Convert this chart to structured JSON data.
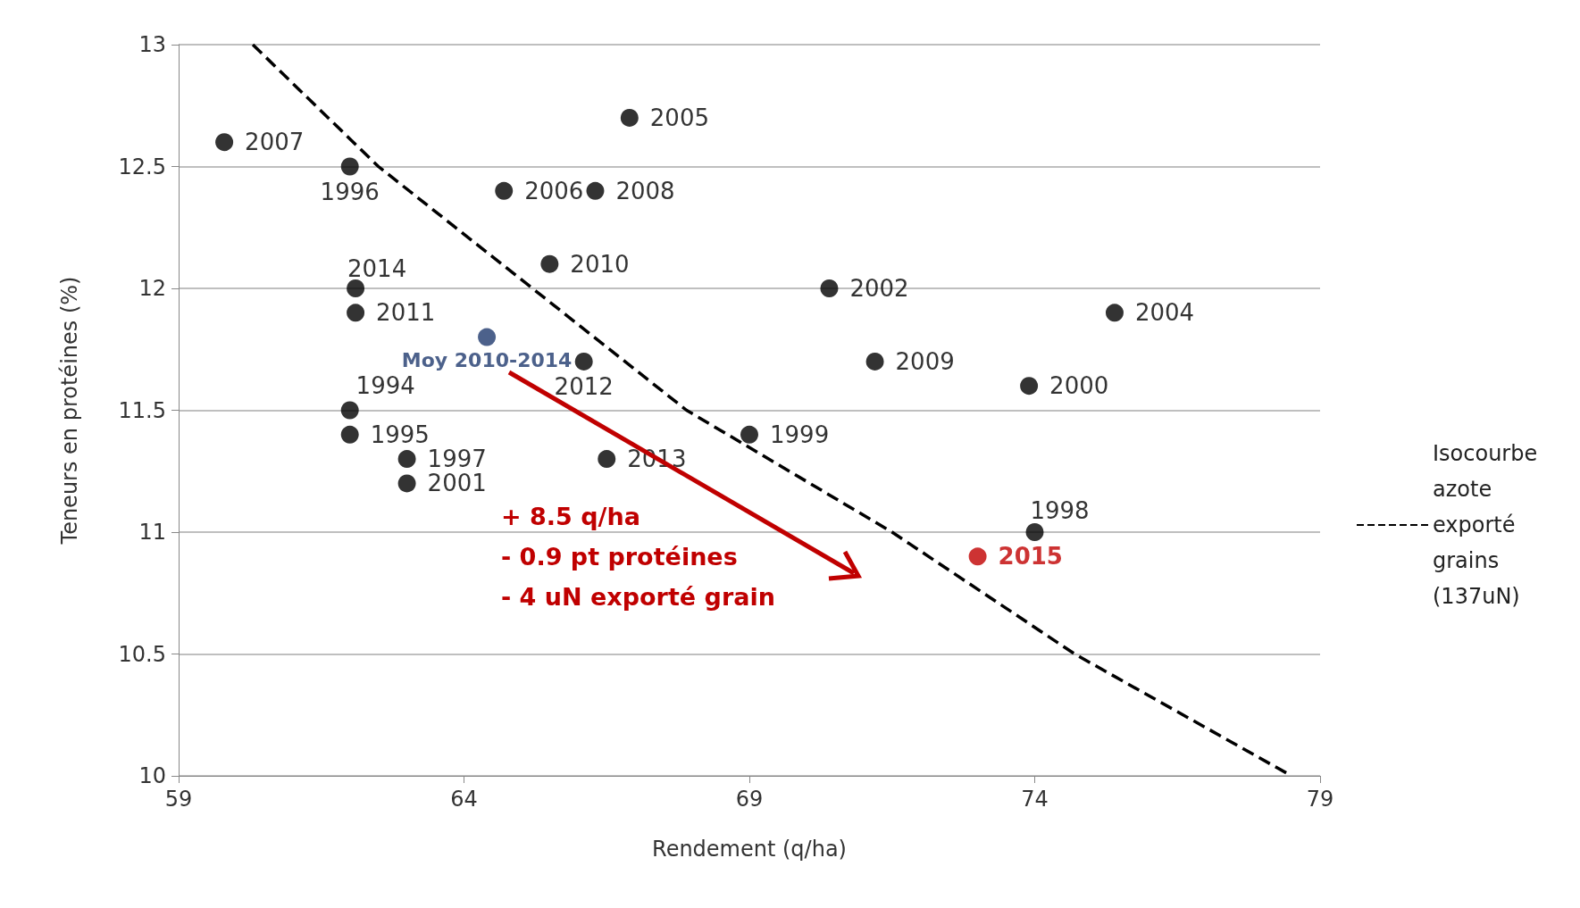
{
  "chart_data": {
    "type": "scatter",
    "xlabel": "Rendement (q/ha)",
    "ylabel": "Teneurs en protéines (%)",
    "xlim": [
      59,
      79
    ],
    "xticks": [
      59,
      64,
      69,
      74,
      79
    ],
    "ylim": [
      10,
      13
    ],
    "yticks": [
      10,
      10.5,
      11,
      11.5,
      12,
      12.5,
      13
    ],
    "grid": "y",
    "legend": "right",
    "marker": "circle",
    "annotations": [
      "+ 8.5 q/ha",
      "- 0.9 pt protéines",
      "- 4 uN exporté grain",
      {
        "text": "2007",
        "x": 59.8,
        "y": 12.6
      },
      {
        "text": "1996",
        "x": 62.0,
        "y": 12.5
      },
      {
        "text": "2006",
        "x": 64.7,
        "y": 12.4
      },
      {
        "text": "2008",
        "x": 66.3,
        "y": 12.4
      },
      {
        "text": "2005",
        "x": 66.9,
        "y": 12.7
      },
      {
        "text": "2010",
        "x": 65.5,
        "y": 12.1
      },
      {
        "text": "2014",
        "x": 62.1,
        "y": 12.0
      },
      {
        "text": "2011",
        "x": 62.1,
        "y": 11.9
      },
      {
        "text": "Moy 2010-2014",
        "x": 64.4,
        "y": 11.8
      },
      {
        "text": "2012",
        "x": 66.1,
        "y": 11.7
      },
      {
        "text": "2002",
        "x": 70.4,
        "y": 12.0
      },
      {
        "text": "2004",
        "x": 75.4,
        "y": 11.9
      },
      {
        "text": "2009",
        "x": 71.2,
        "y": 11.7
      },
      {
        "text": "2000",
        "x": 73.9,
        "y": 11.6
      },
      {
        "text": "1994",
        "x": 62.0,
        "y": 11.5
      },
      {
        "text": "1995",
        "x": 62.0,
        "y": 11.4
      },
      {
        "text": "1999",
        "x": 69.0,
        "y": 11.4
      },
      {
        "text": "1997",
        "x": 63.0,
        "y": 11.3
      },
      {
        "text": "2013",
        "x": 66.5,
        "y": 11.3
      },
      {
        "text": "2001",
        "x": 63.0,
        "y": 11.2
      },
      {
        "text": "1998",
        "x": 74.0,
        "y": 11.0
      },
      {
        "text": "2015",
        "x": 73.0,
        "y": 10.9
      }
    ],
    "series": [
      {
        "x": [
          59.8,
          62.0,
          64.7,
          66.3,
          66.9,
          65.5,
          62.1,
          62.1,
          64.4,
          66.1,
          70.4,
          75.4,
          71.2,
          73.9,
          62.0,
          62.0,
          69.0,
          63.0,
          66.5,
          63.0,
          74.0,
          73.0
        ],
        "values": [
          12.6,
          12.5,
          12.4,
          12.4,
          12.7,
          12.1,
          12.0,
          11.9,
          11.8,
          11.7,
          12.0,
          11.9,
          11.7,
          11.6,
          11.5,
          11.4,
          11.4,
          11.3,
          11.3,
          11.2,
          11.0,
          10.9
        ],
        "colors": [
          "#000000",
          "#000000",
          "#000000",
          "#000000",
          "#000000",
          "#000000",
          "#000000",
          "#000000",
          "#1f3a6e",
          "#000000",
          "#000000",
          "#000000",
          "#000000",
          "#000000",
          "#000000",
          "#000000",
          "#000000",
          "#000000",
          "#000000",
          "#000000",
          "#000000",
          "#c00000"
        ]
      },
      {
        "type": "line",
        "name": "Isocourbe azote exporté grains (137uN)",
        "color": "#000000",
        "line_style": "dashed",
        "marker": "none",
        "x": [
          60.3,
          62.5,
          65.2,
          67.9,
          71.5,
          74.7,
          78.5
        ],
        "values": [
          13,
          12.5,
          12,
          11.5,
          11,
          10.5,
          10
        ]
      }
    ]
  }
}
